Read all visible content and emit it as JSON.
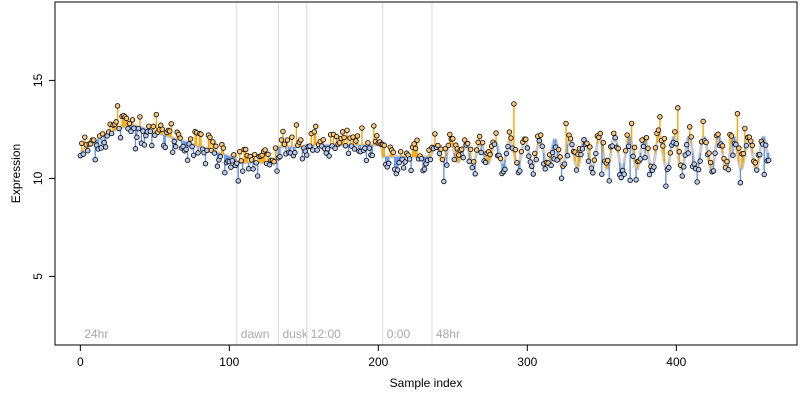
{
  "chart_data": {
    "type": "scatter",
    "xlabel": "Sample index",
    "ylabel": "Expression",
    "xlim": [
      -17,
      481
    ],
    "ylim": [
      1.5,
      19
    ],
    "x_ticks": [
      0,
      100,
      200,
      300,
      400
    ],
    "y_ticks": [
      5,
      10,
      15
    ],
    "colors": {
      "above_fit": "#ffa500",
      "below_fit": "#6495ed",
      "fit_line": "#9e9e9e",
      "point_edge": "#000000",
      "point_fill_above": "#ffc878",
      "point_fill_below": "#b4c8f0",
      "section_line": "#d9d9d9",
      "section_label": "#a9a9a9"
    },
    "sections": [
      {
        "label": "24hr",
        "x": 0
      },
      {
        "label": "dawn",
        "x": 105
      },
      {
        "label": "dusk",
        "x": 133
      },
      {
        "label": "12:00",
        "x": 152
      },
      {
        "label": "0:00",
        "x": 203
      },
      {
        "label": "48hr",
        "x": 236
      }
    ],
    "fit_segments": [
      {
        "x": [
          0,
          105
        ],
        "shape": "hump",
        "base": 11.3,
        "peak": 12.7,
        "end": 11.0
      },
      {
        "x": [
          105,
          133
        ],
        "shape": "flat",
        "level": 10.8
      },
      {
        "x": [
          133,
          152
        ],
        "shape": "flat",
        "level": 11.6
      },
      {
        "x": [
          152,
          203
        ],
        "shape": "flat",
        "level": 11.7
      },
      {
        "x": [
          203,
          236
        ],
        "shape": "flat",
        "level": 11.1
      },
      {
        "x": [
          236,
          462
        ],
        "shape": "oscillating",
        "mean": 11.3,
        "amplitude": 0.7,
        "period": 10
      }
    ],
    "n_points": 463,
    "x_range": [
      0,
      462
    ],
    "noise_sd": 0.45,
    "notable_points": [
      {
        "x": 25,
        "y": 13.7
      },
      {
        "x": 291,
        "y": 13.8
      },
      {
        "x": 401,
        "y": 13.6
      },
      {
        "x": 441,
        "y": 13.3
      },
      {
        "x": 326,
        "y": 12.8
      },
      {
        "x": 369,
        "y": 9.9
      },
      {
        "x": 459,
        "y": 10.2
      }
    ]
  }
}
